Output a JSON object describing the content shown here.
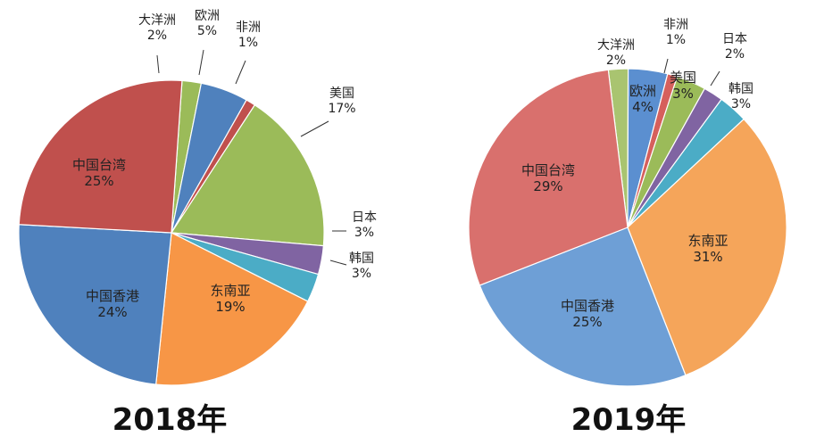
{
  "chart_data": [
    {
      "type": "pie",
      "title": "2018年",
      "slices": [
        {
          "name": "大洋洲",
          "value": 2,
          "label": "2%",
          "color": "#9BBB59"
        },
        {
          "name": "欧洲",
          "value": 5,
          "label": "5%",
          "color": "#4F81BD"
        },
        {
          "name": "非洲",
          "value": 1,
          "label": "1%",
          "color": "#C0504D"
        },
        {
          "name": "美国",
          "value": 17,
          "label": "17%",
          "color": "#9BBB59"
        },
        {
          "name": "日本",
          "value": 3,
          "label": "3%",
          "color": "#8064A2"
        },
        {
          "name": "韩国",
          "value": 3,
          "label": "3%",
          "color": "#4BACC6"
        },
        {
          "name": "东南亚",
          "value": 19,
          "label": "19%",
          "color": "#F79646"
        },
        {
          "name": "中国香港",
          "value": 24,
          "label": "24%",
          "color": "#4F81BD"
        },
        {
          "name": "中国台湾",
          "value": 25,
          "label": "25%",
          "color": "#C0504D"
        }
      ]
    },
    {
      "type": "pie",
      "title": "2019年",
      "slices": [
        {
          "name": "大洋洲",
          "value": 2,
          "label": "2%",
          "color": "#A9C470"
        },
        {
          "name": "欧洲",
          "value": 4,
          "label": "4%",
          "color": "#5B8FD0"
        },
        {
          "name": "非洲",
          "value": 1,
          "label": "1%",
          "color": "#D6605C"
        },
        {
          "name": "美国",
          "value": 3,
          "label": "3%",
          "color": "#9BBB59"
        },
        {
          "name": "日本",
          "value": 2,
          "label": "2%",
          "color": "#8064A2"
        },
        {
          "name": "韩国",
          "value": 3,
          "label": "3%",
          "color": "#4BACC6"
        },
        {
          "name": "东南亚",
          "value": 31,
          "label": "31%",
          "color": "#F5A55A"
        },
        {
          "name": "中国香港",
          "value": 25,
          "label": "25%",
          "color": "#6E9FD6"
        },
        {
          "name": "中国台湾",
          "value": 29,
          "label": "29%",
          "color": "#D9706D"
        }
      ]
    }
  ]
}
